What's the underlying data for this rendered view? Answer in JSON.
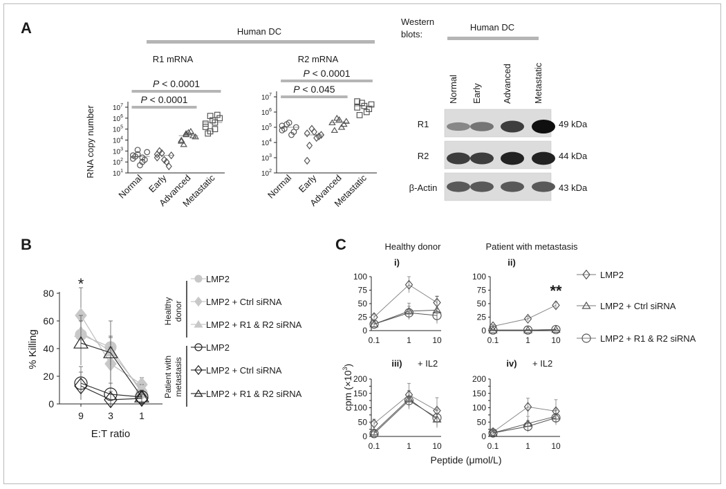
{
  "figure": {
    "panelA": {
      "label": "A",
      "group_header": "Human DC",
      "categories": [
        "Normal",
        "Early",
        "Advanced",
        "Metastatic"
      ],
      "ylabel": "RNA copy number",
      "chart_data": [
        {
          "type": "scatter",
          "title": "R1 mRNA",
          "ylabel": "RNA copy number",
          "yscale": "log",
          "ylim_exp": [
            1,
            7
          ],
          "ytick_exps": [
            1,
            2,
            3,
            4,
            5,
            6,
            7
          ],
          "markers": [
            "circle",
            "diamond",
            "triangle",
            "square"
          ],
          "categories": [
            "Normal",
            "Early",
            "Advanced",
            "Metastatic"
          ],
          "values_log10": [
            [
              2.3,
              2.7,
              2.0,
              2.9,
              2.5,
              1.7,
              2.2,
              2.6,
              3.1,
              2.4
            ],
            [
              2.4,
              2.8,
              2.0,
              2.6,
              3.0,
              2.2,
              1.6,
              2.7
            ],
            [
              4.0,
              4.5,
              4.8,
              4.3,
              3.6,
              4.7,
              4.4,
              3.9,
              4.6
            ],
            [
              5.5,
              6.2,
              5.0,
              6.0,
              4.6,
              5.8,
              6.3,
              5.2,
              4.8,
              5.6
            ]
          ],
          "brackets": [
            {
              "from": "Normal",
              "to": "Metastatic",
              "label_p": "P",
              "label_rest": " < 0.0001"
            },
            {
              "from": "Normal",
              "to": "Advanced",
              "label_p": "P",
              "label_rest": " < 0.0001"
            }
          ]
        },
        {
          "type": "scatter",
          "title": "R2 mRNA",
          "yscale": "log",
          "ylim_exp": [
            2,
            7
          ],
          "ytick_exps": [
            2,
            3,
            4,
            5,
            6,
            7
          ],
          "markers": [
            "circle",
            "diamond",
            "triangle",
            "square"
          ],
          "categories": [
            "Normal",
            "Early",
            "Advanced",
            "Metastatic"
          ],
          "values_log10": [
            [
              4.8,
              5.2,
              4.5,
              5.0,
              4.9,
              5.3,
              4.7,
              5.1
            ],
            [
              4.6,
              4.9,
              4.3,
              4.5,
              3.8,
              4.7,
              4.4,
              2.8
            ],
            [
              5.3,
              5.6,
              5.0,
              5.4,
              4.8,
              5.5,
              5.2
            ],
            [
              6.3,
              6.6,
              6.0,
              6.5,
              5.8,
              6.4,
              6.2,
              6.7
            ]
          ],
          "brackets": [
            {
              "from": "Normal",
              "to": "Metastatic",
              "label_p": "P",
              "label_rest": " < 0.0001"
            },
            {
              "from": "Normal",
              "to": "Advanced",
              "label_p": "P",
              "label_rest": " < 0.045"
            }
          ]
        }
      ]
    },
    "western": {
      "title_line1": "Western",
      "title_line2": "blots:",
      "header": "Human DC",
      "lanes": [
        "Normal",
        "Early",
        "Advanced",
        "Metastatic"
      ],
      "rows": [
        {
          "label": "R1",
          "size": "49 kDa",
          "intensity": [
            0.35,
            0.45,
            0.75,
            1.0
          ]
        },
        {
          "label": "R2",
          "size": "44 kDa",
          "intensity": [
            0.75,
            0.75,
            0.9,
            0.9
          ]
        },
        {
          "label": "β-Actin",
          "size": "43 kDa",
          "intensity": [
            0.6,
            0.6,
            0.6,
            0.6
          ]
        }
      ]
    },
    "panelB": {
      "label": "B",
      "star": "*",
      "chart_data": {
        "type": "line",
        "ylabel": "% Killing",
        "xlabel": "E:T ratio",
        "x_ticks": [
          "9",
          "3",
          "1"
        ],
        "ylim": [
          0,
          80
        ],
        "y_ticks": [
          0,
          20,
          40,
          60,
          80
        ],
        "series": [
          {
            "name": "LMP2",
            "group": "Healthy donor",
            "marker": "circle",
            "filled": true,
            "values": [
              50,
              41,
              8
            ],
            "err": [
              10,
              8,
              4
            ]
          },
          {
            "name": "LMP2 + Ctrl siRNA",
            "group": "Healthy donor",
            "marker": "diamond",
            "filled": true,
            "values": [
              64,
              29,
              14
            ],
            "err": [
              20,
              12,
              5
            ]
          },
          {
            "name": "LMP2 + R1 & R2 siRNA",
            "group": "Healthy donor",
            "marker": "triangle",
            "filled": true,
            "values": [
              52,
              38,
              10
            ],
            "err": [
              12,
              10,
              4
            ]
          },
          {
            "name": "LMP2",
            "group": "Patient with metastasis",
            "marker": "circle",
            "filled": false,
            "values": [
              15,
              7,
              5
            ],
            "err": [
              12,
              8,
              4
            ]
          },
          {
            "name": "LMP2 + Ctrl siRNA",
            "group": "Patient with metastasis",
            "marker": "diamond",
            "filled": false,
            "values": [
              13,
              3,
              4
            ],
            "err": [
              10,
              6,
              3
            ]
          },
          {
            "name": "LMP2 + R1 & R2 siRNA",
            "group": "Patient with metastasis",
            "marker": "triangle",
            "filled": false,
            "values": [
              44,
              37,
              5
            ],
            "err": [
              16,
              23,
              5
            ]
          }
        ]
      },
      "legend_groups": [
        "Healthy donor",
        "Patient with metastasis"
      ],
      "legend_group_lines": [
        [
          "Healthy",
          "donor"
        ],
        [
          "Patient with",
          "metastasis"
        ]
      ]
    },
    "panelC": {
      "label": "C",
      "col_titles": [
        "Healthy donor",
        "Patient with metastasis"
      ],
      "ylabel_main": "cpm (×10",
      "ylabel_sup": "3",
      "ylabel_end": ")",
      "xlabel_main": "Peptide (",
      "xlabel_mu": "μ",
      "xlabel_end": "mol/L)",
      "legend": [
        "LMP2",
        "LMP2 + Ctrl siRNA",
        "LMP2 + R1 & R2 siRNA"
      ],
      "chart_data": [
        {
          "type": "line",
          "sub": "i)",
          "note": "",
          "x_ticks": [
            "0.1",
            "1",
            "10"
          ],
          "ylim": [
            0,
            100
          ],
          "y_ticks": [
            0,
            25,
            50,
            75,
            100
          ],
          "series": [
            {
              "name": "LMP2",
              "values": [
                25,
                85,
                52
              ],
              "err": [
                6,
                15,
                12
              ]
            },
            {
              "name": "LMP2 + Ctrl siRNA",
              "values": [
                12,
                36,
                38
              ],
              "err": [
                5,
                15,
                25
              ]
            },
            {
              "name": "LMP2 + R1 & R2 siRNA",
              "values": [
                12,
                33,
                28
              ],
              "err": [
                4,
                12,
                12
              ]
            }
          ]
        },
        {
          "type": "line",
          "sub": "ii)",
          "note": "**",
          "x_ticks": [
            "0.1",
            "1",
            "10"
          ],
          "ylim": [
            0,
            100
          ],
          "y_ticks": [
            0,
            25,
            50,
            75,
            100
          ],
          "series": [
            {
              "name": "LMP2",
              "values": [
                8,
                22,
                47
              ],
              "err": [
                3,
                4,
                6
              ]
            },
            {
              "name": "LMP2 + Ctrl siRNA",
              "values": [
                1,
                1,
                2
              ],
              "err": [
                1,
                1,
                1
              ]
            },
            {
              "name": "LMP2 + R1 & R2 siRNA",
              "values": [
                1,
                1,
                2
              ],
              "err": [
                1,
                1,
                1
              ]
            }
          ]
        },
        {
          "type": "line",
          "sub": "iii)",
          "note": "+ IL2",
          "x_ticks": [
            "0.1",
            "1",
            "10"
          ],
          "ylim": [
            0,
            200
          ],
          "y_ticks": [
            0,
            25,
            50,
            75,
            100,
            125,
            150,
            175,
            200
          ],
          "tick_labels": [
            "0",
            "50",
            "100",
            "150",
            "200"
          ],
          "series": [
            {
              "name": "LMP2",
              "values": [
                45,
                145,
                90
              ],
              "err": [
                15,
                40,
                45
              ]
            },
            {
              "name": "LMP2 + Ctrl siRNA",
              "values": [
                15,
                130,
                60
              ],
              "err": [
                10,
                30,
                30
              ]
            },
            {
              "name": "LMP2 + R1 & R2 siRNA",
              "values": [
                10,
                125,
                65
              ],
              "err": [
                8,
                30,
                30
              ]
            }
          ]
        },
        {
          "type": "line",
          "sub": "iv)",
          "note": "+ IL2",
          "x_ticks": [
            "0.1",
            "1",
            "10"
          ],
          "ylim": [
            0,
            200
          ],
          "y_ticks": [
            0,
            50,
            100,
            150,
            200
          ],
          "tick_labels": [
            "0",
            "50",
            "100",
            "150",
            "200"
          ],
          "series": [
            {
              "name": "LMP2",
              "values": [
                15,
                103,
                88
              ],
              "err": [
                5,
                30,
                40
              ]
            },
            {
              "name": "LMP2 + Ctrl siRNA",
              "values": [
                12,
                45,
                70
              ],
              "err": [
                5,
                25,
                25
              ]
            },
            {
              "name": "LMP2 + R1 & R2 siRNA",
              "values": [
                12,
                35,
                65
              ],
              "err": [
                5,
                20,
                25
              ]
            }
          ]
        }
      ]
    }
  }
}
